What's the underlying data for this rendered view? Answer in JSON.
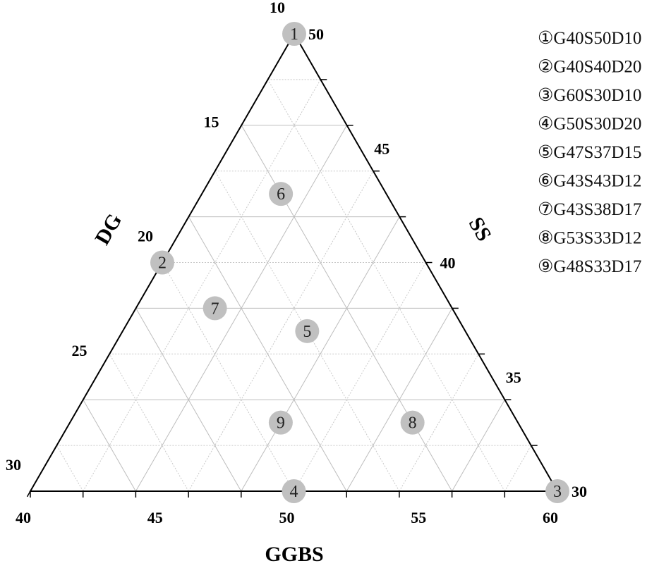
{
  "chart_data": {
    "type": "ternary",
    "axes": {
      "bottom": {
        "title": "GGBS",
        "ticks": [
          "40",
          "45",
          "50",
          "55",
          "60"
        ],
        "range": [
          40,
          60
        ]
      },
      "left": {
        "title": "DG",
        "ticks": [
          "10",
          "15",
          "20",
          "25",
          "30"
        ],
        "range": [
          10,
          30
        ]
      },
      "right": {
        "title": "SS",
        "ticks": [
          "50",
          "45",
          "40",
          "35",
          "30"
        ],
        "range": [
          30,
          50
        ]
      }
    },
    "grid": true,
    "legend_position": "right",
    "marker_color": "#c0c0c0",
    "points": [
      {
        "id": "1",
        "legend": "①G40S50D10",
        "ggbs": 40,
        "ss": 50,
        "dg": 10
      },
      {
        "id": "2",
        "legend": "②G40S40D20",
        "ggbs": 40,
        "ss": 40,
        "dg": 20
      },
      {
        "id": "3",
        "legend": "③G60S30D10",
        "ggbs": 60,
        "ss": 30,
        "dg": 10
      },
      {
        "id": "4",
        "legend": "④G50S30D20",
        "ggbs": 50,
        "ss": 30,
        "dg": 20
      },
      {
        "id": "5",
        "legend": "⑤G47S37D15",
        "ggbs": 47,
        "ss": 37,
        "dg": 15
      },
      {
        "id": "6",
        "legend": "⑥G43S43D12",
        "ggbs": 43,
        "ss": 43,
        "dg": 12
      },
      {
        "id": "7",
        "legend": "⑦G43S38D17",
        "ggbs": 43,
        "ss": 38,
        "dg": 17
      },
      {
        "id": "8",
        "legend": "⑧G53S33D12",
        "ggbs": 53,
        "ss": 33,
        "dg": 12
      },
      {
        "id": "9",
        "legend": "⑨G48S33D17",
        "ggbs": 48,
        "ss": 33,
        "dg": 17
      }
    ]
  }
}
